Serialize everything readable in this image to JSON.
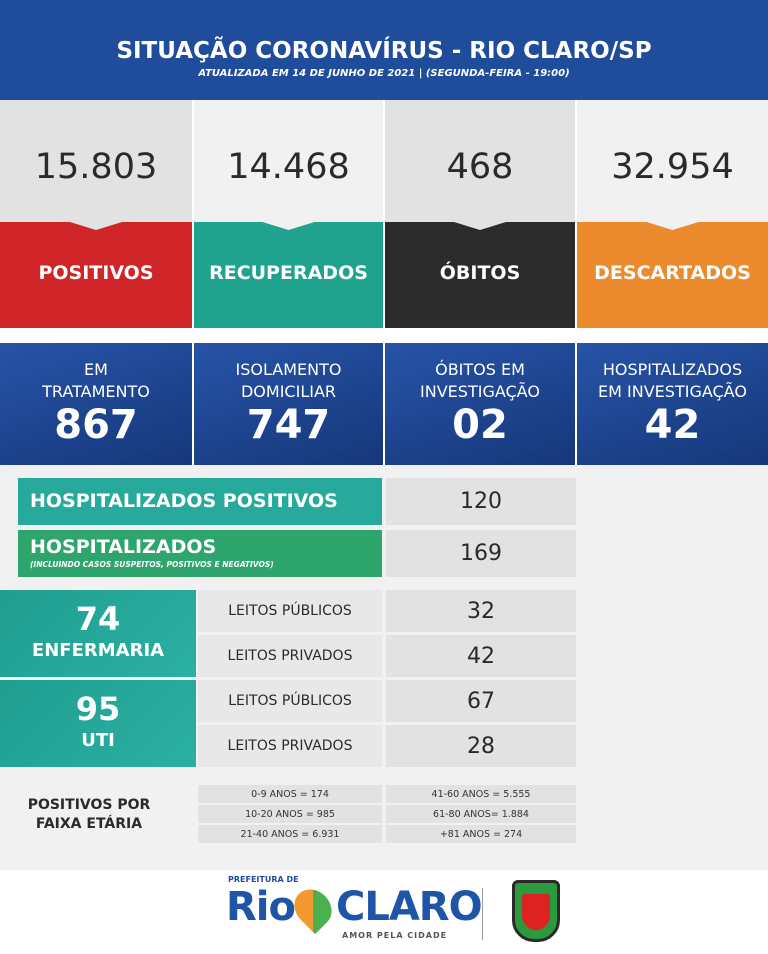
{
  "header": {
    "title": "SITUAÇÃO CORONAVÍRUS - RIO CLARO/SP",
    "subtitle": "ATUALIZADA EM 14 DE JUNHO DE 2021 | (SEGUNDA-FEIRA - 19:00)"
  },
  "summary": [
    {
      "value": "15.803",
      "label": "POSITIVOS"
    },
    {
      "value": "14.468",
      "label": "RECUPERADOS"
    },
    {
      "value": "468",
      "label": "ÓBITOS"
    },
    {
      "value": "32.954",
      "label": "DESCARTADOS"
    }
  ],
  "status": [
    {
      "label_lines": [
        "EM",
        "TRATAMENTO"
      ],
      "value": "867"
    },
    {
      "label_lines": [
        "ISOLAMENTO",
        "DOMICILIAR"
      ],
      "value": "747"
    },
    {
      "label_lines": [
        "ÓBITOS EM",
        "INVESTIGAÇÃO"
      ],
      "value": "02"
    },
    {
      "label_lines": [
        "HOSPITALIZADOS",
        "EM INVESTIGAÇÃO"
      ],
      "value": "42"
    }
  ],
  "hospitalized": [
    {
      "label": "HOSPITALIZADOS POSITIVOS",
      "value": "120"
    },
    {
      "label": "HOSPITALIZADOS",
      "note": "(INCLUINDO CASOS SUSPEITOS, POSITIVOS E NEGATIVOS)",
      "value": "169"
    }
  ],
  "beds": [
    {
      "total": "74",
      "label": "ENFERMARIA",
      "rows": [
        {
          "label": "LEITOS PÚBLICOS",
          "value": "32"
        },
        {
          "label": "LEITOS PRIVADOS",
          "value": "42"
        }
      ]
    },
    {
      "total": "95",
      "label": "UTI",
      "rows": [
        {
          "label": "LEITOS PÚBLICOS",
          "value": "67"
        },
        {
          "label": "LEITOS PRIVADOS",
          "value": "28"
        }
      ]
    }
  ],
  "age": {
    "title_lines": [
      "POSITIVOS POR",
      "FAIXA ETÁRIA"
    ],
    "columns": [
      [
        "0-9 ANOS = 174",
        "10-20 ANOS = 985",
        "21-40 ANOS = 6.931"
      ],
      [
        "41-60 ANOS = 5.555",
        "61-80 ANOS= 1.884",
        "+81 ANOS = 274"
      ]
    ]
  },
  "footer": {
    "prefix": "PREFEITURA DE",
    "logo_left": "Rio",
    "logo_right": "CLARO",
    "tagline": "AMOR PELA CIDADE"
  }
}
